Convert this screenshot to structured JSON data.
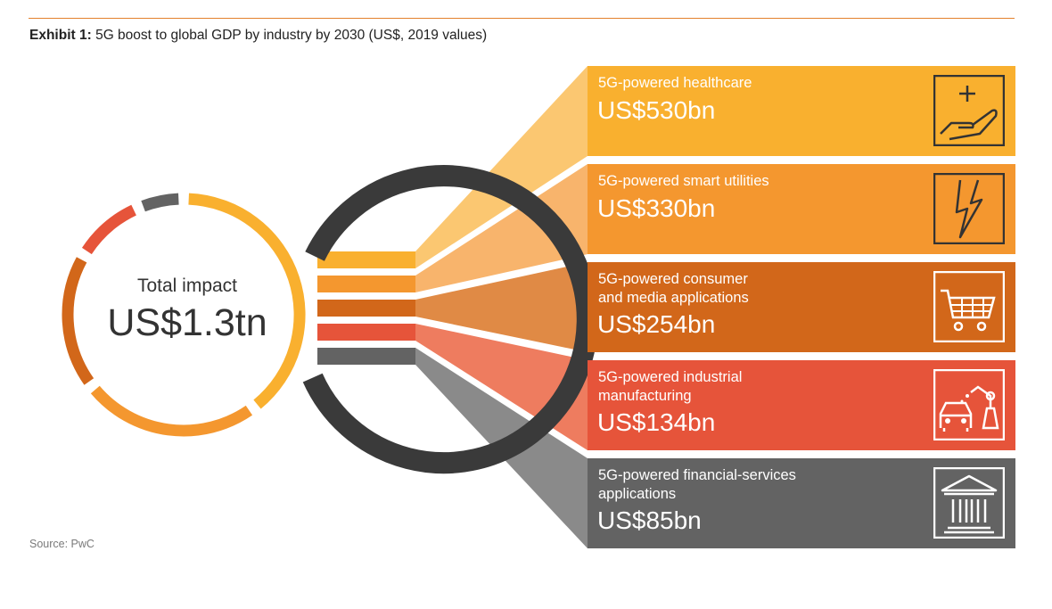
{
  "header": {
    "title_bold": "Exhibit 1:",
    "title_rest": " 5G boost to global GDP by industry by 2030 (US$, 2019 values)"
  },
  "center": {
    "label": "Total impact",
    "value": "US$1.3tn"
  },
  "source": "Source: PwC",
  "colors": {
    "healthcare": "#f9b02f",
    "utilities": "#f4972f",
    "consumer": "#d2671a",
    "industrial": "#e6543a",
    "financial": "#636363",
    "ring_outer": "#3a3a3a",
    "accent_rule": "#e3812c"
  },
  "chart_data": {
    "type": "donut",
    "title": "Exhibit 1: 5G boost to global GDP by industry by 2030 (US$, 2019 values)",
    "total_label": "Total impact",
    "total": "US$1.3tn",
    "unit": "US$ bn",
    "series": [
      {
        "label": "5G-powered healthcare",
        "value": 530,
        "display": "US$530bn",
        "color": "#f9b02f",
        "icon": "hand-plus-icon"
      },
      {
        "label": "5G-powered smart utilities",
        "value": 330,
        "display": "US$330bn",
        "color": "#f4972f",
        "icon": "lightning-icon"
      },
      {
        "label": "5G-powered consumer\nand media applications",
        "value": 254,
        "display": "US$254bn",
        "color": "#d2671a",
        "icon": "cart-icon"
      },
      {
        "label": "5G-powered industrial\nmanufacturing",
        "value": 134,
        "display": "US$134bn",
        "color": "#e6543a",
        "icon": "robot-car-icon"
      },
      {
        "label": "5G-powered financial-services\napplications",
        "value": 85,
        "display": "US$85bn",
        "color": "#636363",
        "icon": "bank-icon"
      }
    ]
  }
}
